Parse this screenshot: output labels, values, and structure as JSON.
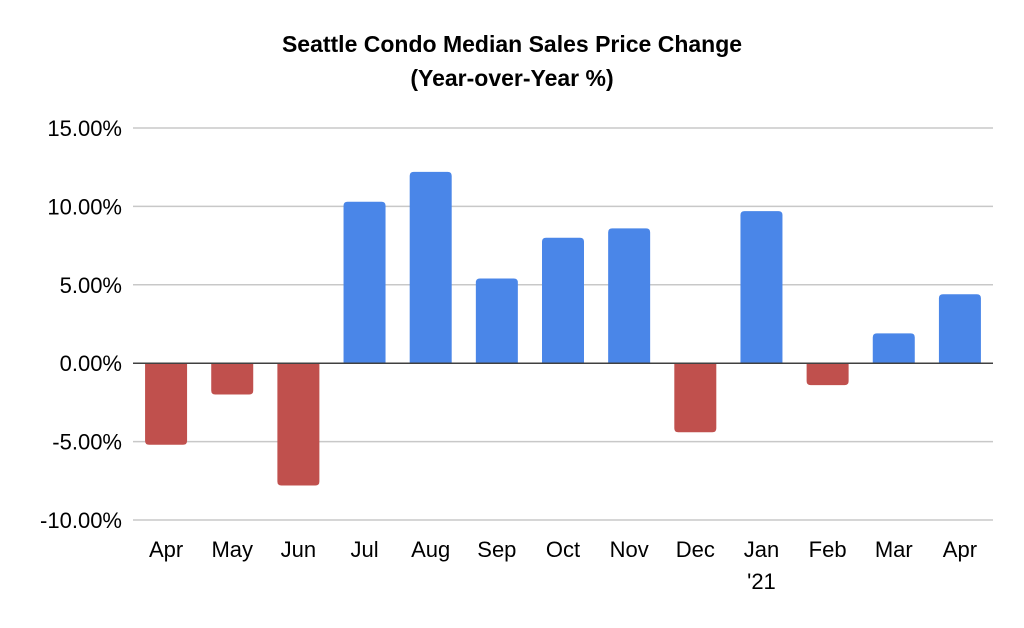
{
  "chart_data": {
    "type": "bar",
    "title": "Seattle Condo Median Sales Price Change",
    "subtitle": "(Year-over-Year %)",
    "xlabel": "",
    "ylabel": "",
    "ylim": [
      -10,
      15
    ],
    "yticks": [
      15,
      10,
      5,
      0,
      -5,
      -10
    ],
    "ytick_labels": [
      "15.00%",
      "10.00%",
      "5.00%",
      "0.00%",
      "-5.00%",
      "-10.00%"
    ],
    "grid": true,
    "legend": "none",
    "categories": [
      "Apr",
      "May",
      "Jun",
      "Jul",
      "Aug",
      "Sep",
      "Oct",
      "Nov",
      "Dec",
      "Jan",
      "Feb",
      "Mar",
      "Apr"
    ],
    "category_sublabels": [
      "",
      "",
      "",
      "",
      "",
      "",
      "",
      "",
      "",
      "'21",
      "",
      "",
      ""
    ],
    "values": [
      -5.2,
      -2.0,
      -7.8,
      10.3,
      12.2,
      5.4,
      8.0,
      8.6,
      -4.4,
      9.7,
      -1.4,
      1.9,
      4.4
    ],
    "colors": {
      "positive": "#4a86e8",
      "negative": "#c0504d"
    }
  }
}
